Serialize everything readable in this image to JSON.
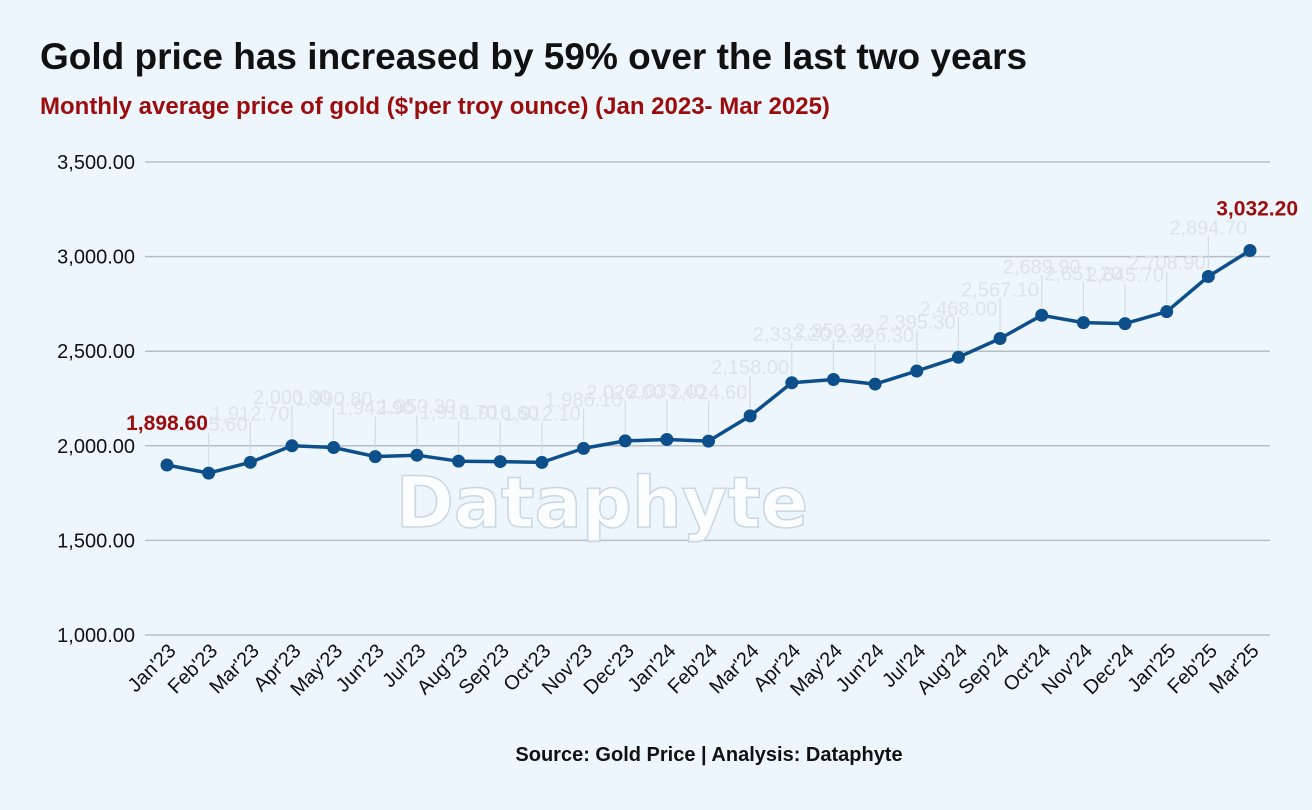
{
  "header": {
    "title": "Gold price has increased by 59% over the last two years",
    "subtitle": "Monthly average price of gold ($'per troy ounce) (Jan 2023- Mar 2025)"
  },
  "footer": {
    "source": "Source: Gold Price | Analysis: Dataphyte"
  },
  "watermark": "Dataphyte",
  "colors": {
    "line": "#0d4f8b",
    "highlight_label": "#9b0d0d",
    "grid": "#b7bec6",
    "background": "#eef6fd"
  },
  "chart_data": {
    "type": "line",
    "title": "Gold price has increased by 59% over the last two years",
    "subtitle": "Monthly average price of gold ($'per troy ounce) (Jan 2023- Mar 2025)",
    "xlabel": "",
    "ylabel": "",
    "ylim": [
      1000,
      3500
    ],
    "yticks": [
      "1,000.00",
      "1,500.00",
      "2,000.00",
      "2,500.00",
      "3,000.00",
      "3,500.00"
    ],
    "ytick_values": [
      1000,
      1500,
      2000,
      2500,
      3000,
      3500
    ],
    "grid": true,
    "legend": "none",
    "categories": [
      "Jan'23",
      "Feb'23",
      "Mar'23",
      "Apr'23",
      "May'23",
      "Jun'23",
      "Jul'23",
      "Aug'23",
      "Sep'23",
      "Oct'23",
      "Nov'23",
      "Dec'23",
      "Jan'24",
      "Feb'24",
      "Mar'24",
      "Apr'24",
      "May'24",
      "Jun'24",
      "Jul'24",
      "Aug'24",
      "Sep'24",
      "Oct'24",
      "Nov'24",
      "Dec'24",
      "Jan'25",
      "Feb'25",
      "Mar'25"
    ],
    "values": [
      1898.6,
      1855.6,
      1912.7,
      2000.0,
      1990.8,
      1942.9,
      1950.3,
      1918.7,
      1916.6,
      1912.1,
      1986.1,
      2026.0,
      2033.4,
      2024.6,
      2158.0,
      2333.2,
      2350.3,
      2326.3,
      2395.3,
      2468.0,
      2567.1,
      2689.9,
      2651.2,
      2645.7,
      2708.9,
      2894.7,
      3032.2
    ],
    "highlighted_labels": [
      {
        "index": 0,
        "text": "1,898.60"
      },
      {
        "index": 26,
        "text": "3,032.20"
      }
    ],
    "faint_labels": [
      "",
      "1,855.60",
      "1,912.70",
      "2,000.00",
      "1,990.80",
      "1,942.90",
      "1,950.30",
      "1,918.70",
      "1,916.60",
      "1,912.10",
      "1,986.10",
      "2,026.00",
      "2,033.40",
      "2,024.60",
      "2,158.00",
      "2,333.20",
      "2,350.30",
      "2,326.30",
      "2,395.30",
      "2,468.00",
      "2,567.10",
      "2,689.90",
      "2,651.20",
      "2,645.70",
      "2,708.90",
      "2,894.70",
      ""
    ]
  }
}
